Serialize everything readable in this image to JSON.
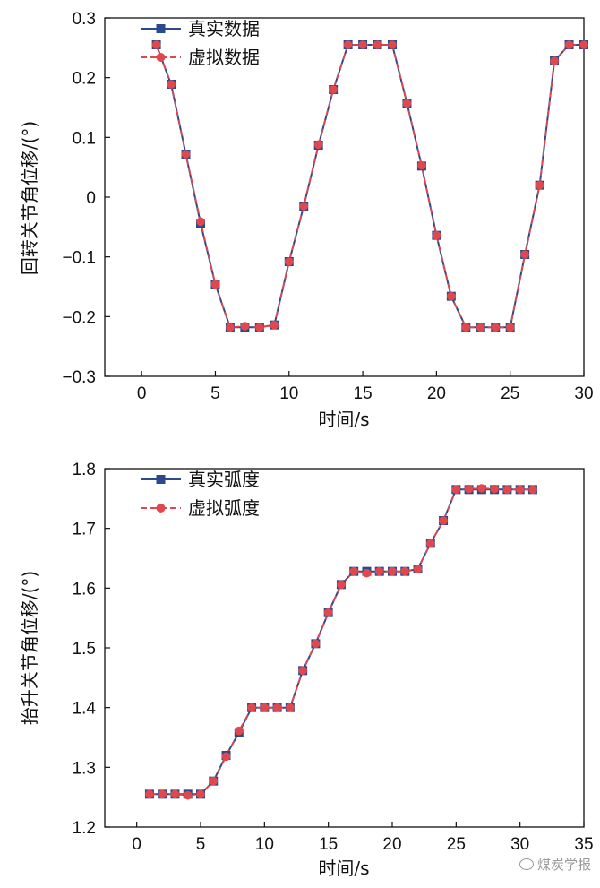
{
  "colors": {
    "real": "#2b4a8c",
    "virtual": "#e0484d",
    "axis": "#111111"
  },
  "watermark": "煤炭学报",
  "chart_data": [
    {
      "type": "line",
      "xlabel": "时间/s",
      "ylabel": "回转关节角位移/(°)",
      "xlim": [
        -2.5,
        30
      ],
      "ylim": [
        -0.3,
        0.3
      ],
      "xticks": [
        0,
        5,
        10,
        15,
        20,
        25,
        30
      ],
      "yticks": [
        -0.3,
        -0.2,
        -0.1,
        0,
        0.1,
        0.2,
        0.3
      ],
      "ytick_labels": [
        "−0.3",
        "−0.2",
        "−0.1",
        "0",
        "0.1",
        "0.2",
        "0.3"
      ],
      "legend_position": "top-left",
      "series": [
        {
          "name": "真实数据",
          "marker": "square",
          "line": "solid",
          "x": [
            1,
            2,
            3,
            4,
            5,
            6,
            7,
            8,
            9,
            10,
            11,
            12,
            13,
            14,
            15,
            16,
            17,
            18,
            19,
            20,
            21,
            22,
            23,
            24,
            25,
            26,
            27,
            28,
            29,
            30
          ],
          "values": [
            0.255,
            0.189,
            0.072,
            -0.044,
            -0.146,
            -0.218,
            -0.218,
            -0.218,
            -0.214,
            -0.108,
            -0.015,
            0.087,
            0.18,
            0.255,
            0.255,
            0.255,
            0.255,
            0.157,
            0.052,
            -0.064,
            -0.166,
            -0.218,
            -0.218,
            -0.218,
            -0.218,
            -0.096,
            0.02,
            0.228,
            0.255,
            0.255
          ]
        },
        {
          "name": "虚拟数据",
          "marker": "circle",
          "line": "dashed",
          "x": [
            1,
            2,
            3,
            4,
            5,
            6,
            7,
            8,
            9,
            10,
            11,
            12,
            13,
            14,
            15,
            16,
            17,
            18,
            19,
            20,
            21,
            22,
            23,
            24,
            25,
            26,
            27,
            28,
            29,
            30
          ],
          "values": [
            0.255,
            0.189,
            0.072,
            -0.041,
            -0.146,
            -0.218,
            -0.216,
            -0.218,
            -0.214,
            -0.108,
            -0.015,
            0.088,
            0.18,
            0.255,
            0.255,
            0.255,
            0.255,
            0.157,
            0.053,
            -0.064,
            -0.166,
            -0.218,
            -0.218,
            -0.218,
            -0.218,
            -0.096,
            0.02,
            0.228,
            0.255,
            0.255
          ]
        }
      ]
    },
    {
      "type": "line",
      "xlabel": "时间/s",
      "ylabel": "抬升关节角位移/(°)",
      "xlim": [
        -2.5,
        35
      ],
      "ylim": [
        1.2,
        1.8
      ],
      "xticks": [
        0,
        5,
        10,
        15,
        20,
        25,
        30,
        35
      ],
      "yticks": [
        1.2,
        1.3,
        1.4,
        1.5,
        1.6,
        1.7,
        1.8
      ],
      "ytick_labels": [
        "1.2",
        "1.3",
        "1.4",
        "1.5",
        "1.6",
        "1.7",
        "1.8"
      ],
      "legend_position": "top-left",
      "series": [
        {
          "name": "真实弧度",
          "marker": "square",
          "line": "solid",
          "x": [
            1,
            2,
            3,
            4,
            5,
            6,
            7,
            8,
            9,
            10,
            11,
            12,
            13,
            14,
            15,
            16,
            17,
            18,
            19,
            20,
            21,
            22,
            23,
            24,
            25,
            26,
            27,
            28,
            29,
            30,
            31
          ],
          "values": [
            1.255,
            1.255,
            1.255,
            1.255,
            1.255,
            1.277,
            1.32,
            1.358,
            1.4,
            1.4,
            1.4,
            1.4,
            1.462,
            1.507,
            1.559,
            1.606,
            1.628,
            1.628,
            1.628,
            1.628,
            1.628,
            1.632,
            1.675,
            1.713,
            1.765,
            1.765,
            1.765,
            1.765,
            1.765,
            1.765,
            1.765
          ]
        },
        {
          "name": "虚拟弧度",
          "marker": "circle",
          "line": "dashed",
          "x": [
            1,
            2,
            3,
            4,
            5,
            6,
            7,
            8,
            9,
            10,
            11,
            12,
            13,
            14,
            15,
            16,
            17,
            18,
            19,
            20,
            21,
            22,
            23,
            24,
            25,
            26,
            27,
            28,
            29,
            30,
            31
          ],
          "values": [
            1.255,
            1.255,
            1.255,
            1.253,
            1.255,
            1.277,
            1.318,
            1.361,
            1.4,
            1.4,
            1.4,
            1.4,
            1.462,
            1.507,
            1.559,
            1.606,
            1.628,
            1.625,
            1.628,
            1.628,
            1.628,
            1.632,
            1.675,
            1.713,
            1.765,
            1.766,
            1.767,
            1.766,
            1.765,
            1.765,
            1.765
          ]
        }
      ]
    }
  ]
}
